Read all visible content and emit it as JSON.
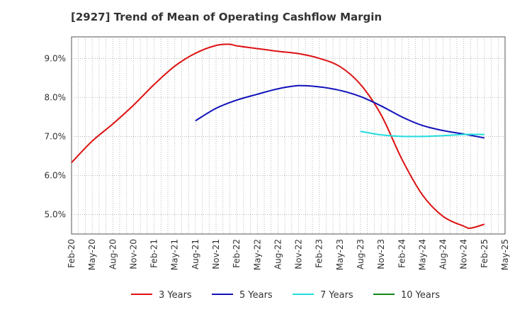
{
  "chart_data": {
    "type": "line",
    "title": "[2927]  Trend of Mean of Operating Cashflow Margin",
    "xlabel": "",
    "ylabel": "",
    "x_ticks": [
      "Feb-20",
      "May-20",
      "Aug-20",
      "Nov-20",
      "Feb-21",
      "May-21",
      "Aug-21",
      "Nov-21",
      "Feb-22",
      "May-22",
      "Aug-22",
      "Nov-22",
      "Feb-23",
      "May-23",
      "Aug-23",
      "Nov-23",
      "Feb-24",
      "May-24",
      "Aug-24",
      "Nov-24",
      "Feb-25",
      "May-25"
    ],
    "y_ticks": [
      "5.0%",
      "6.0%",
      "7.0%",
      "8.0%",
      "9.0%"
    ],
    "y_tick_values": [
      5.0,
      6.0,
      7.0,
      8.0,
      9.0
    ],
    "ylim": [
      4.5,
      9.55
    ],
    "y_unit": "%",
    "grid": true,
    "legend_position": "bottom",
    "series": [
      {
        "name": "3 Years",
        "color": "#dd1111",
        "x": [
          "Feb-20",
          "May-20",
          "Aug-20",
          "Nov-20",
          "Feb-21",
          "May-21",
          "Aug-21",
          "Nov-21",
          "Jan-22",
          "Feb-22",
          "May-22",
          "Aug-22",
          "Nov-22",
          "Feb-23",
          "May-23",
          "Aug-23",
          "Nov-23",
          "Feb-24",
          "May-24",
          "Aug-24",
          "Nov-24",
          "Dec-24",
          "Feb-25"
        ],
        "values": [
          6.33,
          6.88,
          7.32,
          7.8,
          8.33,
          8.8,
          9.13,
          9.33,
          9.36,
          9.32,
          9.25,
          9.18,
          9.12,
          9.0,
          8.79,
          8.33,
          7.55,
          6.42,
          5.5,
          4.95,
          4.7,
          4.65,
          4.75
        ]
      },
      {
        "name": "5 Years",
        "color": "#1111bb",
        "x": [
          "Aug-21",
          "Nov-21",
          "Feb-22",
          "May-22",
          "Aug-22",
          "Nov-22",
          "Feb-23",
          "May-23",
          "Aug-23",
          "Nov-23",
          "Feb-24",
          "May-24",
          "Aug-24",
          "Nov-24",
          "Feb-25"
        ],
        "values": [
          7.4,
          7.72,
          7.93,
          8.08,
          8.22,
          8.3,
          8.27,
          8.18,
          8.02,
          7.78,
          7.5,
          7.28,
          7.15,
          7.06,
          6.96
        ]
      },
      {
        "name": "7 Years",
        "color": "#22dddd",
        "x": [
          "Aug-23",
          "Nov-23",
          "Feb-24",
          "May-24",
          "Aug-24",
          "Nov-24",
          "Feb-25"
        ],
        "values": [
          7.13,
          7.04,
          7.0,
          7.0,
          7.02,
          7.05,
          7.05
        ]
      },
      {
        "name": "10 Years",
        "color": "#118811",
        "x": [],
        "values": []
      }
    ]
  }
}
